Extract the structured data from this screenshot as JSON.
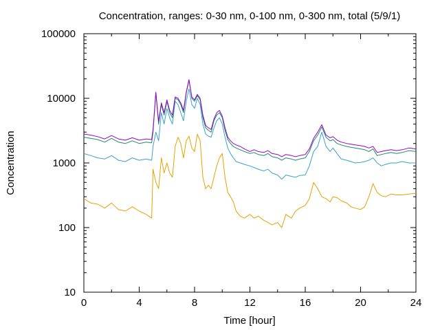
{
  "chart_data": {
    "type": "line",
    "title": "Concentration, ranges: 0-30 nm, 0-100 nm, 0-300 nm, total (5/9/1)",
    "xlabel": "Time [hour]",
    "ylabel": "Concentration",
    "xlim": [
      0,
      24
    ],
    "ylim": [
      10,
      100000
    ],
    "yscale": "log",
    "grid": false,
    "legend": "none",
    "x_ticks": [
      "0",
      "4",
      "8",
      "12",
      "16",
      "20",
      "24"
    ],
    "y_ticks": [
      "10",
      "100",
      "1000",
      "10000",
      "100000"
    ],
    "series": [
      {
        "color": "#e6a000",
        "x": [
          0,
          0.5,
          1,
          1.5,
          2,
          2.5,
          3,
          3.5,
          4,
          4.5,
          4.9,
          5.0,
          5.2,
          5.4,
          5.6,
          5.8,
          6,
          6.2,
          6.4,
          6.6,
          6.8,
          7,
          7.2,
          7.4,
          7.6,
          7.8,
          8,
          8.2,
          8.4,
          8.6,
          8.8,
          9,
          9.2,
          9.4,
          9.6,
          9.8,
          10,
          10.2,
          10.4,
          10.6,
          10.8,
          11,
          11.3,
          11.6,
          12,
          12.3,
          12.6,
          13,
          13.3,
          13.6,
          14,
          14.3,
          14.6,
          15,
          15.3,
          15.6,
          16,
          16.3,
          16.6,
          16.9,
          17.2,
          17.5,
          17.8,
          18,
          18.3,
          18.6,
          19,
          19.3,
          19.6,
          20,
          20.3,
          20.6,
          20.9,
          21.2,
          21.5,
          21.8,
          22.2,
          22.6,
          23,
          23.5,
          24
        ],
        "values": [
          280,
          240,
          230,
          200,
          240,
          190,
          180,
          210,
          180,
          160,
          140,
          800,
          500,
          400,
          1200,
          700,
          1000,
          700,
          600,
          1800,
          2500,
          2000,
          1200,
          2200,
          2600,
          1700,
          1500,
          2800,
          2200,
          600,
          400,
          450,
          400,
          600,
          900,
          1200,
          1400,
          600,
          350,
          300,
          250,
          180,
          150,
          140,
          160,
          140,
          150,
          130,
          120,
          110,
          120,
          100,
          160,
          140,
          180,
          200,
          220,
          280,
          500,
          400,
          300,
          280,
          250,
          300,
          290,
          260,
          240,
          210,
          200,
          190,
          210,
          300,
          480,
          350,
          310,
          300,
          330,
          320,
          320,
          330,
          340
        ]
      },
      {
        "color": "#3a9fd0",
        "x": [
          0,
          0.5,
          1,
          1.5,
          2,
          2.5,
          3,
          3.5,
          4,
          4.5,
          4.9,
          5.0,
          5.2,
          5.4,
          5.6,
          5.8,
          6,
          6.2,
          6.4,
          6.6,
          6.8,
          7,
          7.2,
          7.4,
          7.6,
          7.8,
          8,
          8.2,
          8.4,
          8.6,
          8.8,
          9,
          9.2,
          9.4,
          9.6,
          9.8,
          10,
          10.2,
          10.4,
          10.6,
          10.8,
          11,
          11.3,
          11.6,
          12,
          12.3,
          12.6,
          13,
          13.3,
          13.6,
          14,
          14.3,
          14.6,
          15,
          15.3,
          15.6,
          16,
          16.3,
          16.6,
          16.9,
          17.2,
          17.5,
          17.8,
          18,
          18.3,
          18.6,
          19,
          19.3,
          19.6,
          20,
          20.3,
          20.6,
          20.9,
          21.2,
          21.5,
          21.8,
          22.2,
          22.6,
          23,
          23.5,
          24
        ],
        "values": [
          1400,
          1300,
          1200,
          1150,
          1300,
          1100,
          1050,
          1200,
          1100,
          1150,
          1100,
          1800,
          3000,
          2200,
          6000,
          4000,
          7000,
          5000,
          4000,
          9000,
          8000,
          6000,
          4500,
          9000,
          14000,
          8000,
          7000,
          10000,
          8000,
          4000,
          2800,
          2600,
          2500,
          3500,
          4500,
          5000,
          4000,
          2500,
          1700,
          1400,
          1200,
          1050,
          1000,
          950,
          900,
          850,
          800,
          750,
          800,
          700,
          650,
          560,
          650,
          620,
          600,
          640,
          650,
          900,
          1500,
          1800,
          3000,
          1800,
          1500,
          1700,
          1400,
          1150,
          1100,
          1050,
          1000,
          1020,
          1050,
          1100,
          1200,
          1000,
          900,
          950,
          1000,
          1000,
          1050,
          1000,
          1000
        ]
      },
      {
        "color": "#1a8a6a",
        "x": [
          0,
          0.5,
          1,
          1.5,
          2,
          2.5,
          3,
          3.5,
          4,
          4.5,
          4.9,
          5.0,
          5.2,
          5.4,
          5.6,
          5.8,
          6,
          6.2,
          6.4,
          6.6,
          6.8,
          7,
          7.2,
          7.4,
          7.6,
          7.8,
          8,
          8.2,
          8.4,
          8.6,
          8.8,
          9,
          9.2,
          9.4,
          9.6,
          9.8,
          10,
          10.2,
          10.4,
          10.6,
          10.8,
          11,
          11.3,
          11.6,
          12,
          12.3,
          12.6,
          13,
          13.3,
          13.6,
          14,
          14.3,
          14.6,
          15,
          15.3,
          15.6,
          16,
          16.3,
          16.6,
          16.9,
          17.2,
          17.5,
          17.8,
          18,
          18.3,
          18.6,
          19,
          19.3,
          19.6,
          20,
          20.3,
          20.6,
          20.9,
          21.2,
          21.5,
          21.8,
          22.2,
          22.6,
          23,
          23.5,
          24
        ],
        "values": [
          2500,
          2400,
          2300,
          2100,
          2400,
          2100,
          2000,
          2200,
          2000,
          2100,
          2050,
          3000,
          12000,
          4000,
          8000,
          5500,
          9000,
          6000,
          5000,
          10000,
          9500,
          8000,
          6000,
          12000,
          19000,
          10000,
          9000,
          11000,
          9500,
          5000,
          3500,
          3200,
          3000,
          4500,
          5500,
          6000,
          5000,
          3200,
          2300,
          2000,
          1800,
          1700,
          1600,
          1500,
          1400,
          1450,
          1350,
          1300,
          1400,
          1250,
          1200,
          1100,
          1200,
          1150,
          1100,
          1150,
          1200,
          1500,
          2200,
          2700,
          3600,
          2500,
          2200,
          2300,
          2000,
          1900,
          1800,
          1750,
          1700,
          1650,
          1600,
          1500,
          1650,
          1300,
          1350,
          1400,
          1450,
          1400,
          1450,
          1550,
          1500
        ]
      },
      {
        "color": "#9900cc",
        "x": [
          0,
          0.5,
          1,
          1.5,
          2,
          2.5,
          3,
          3.5,
          4,
          4.5,
          4.9,
          5.0,
          5.2,
          5.4,
          5.6,
          5.8,
          6,
          6.2,
          6.4,
          6.6,
          6.8,
          7,
          7.2,
          7.4,
          7.6,
          7.8,
          8,
          8.2,
          8.4,
          8.6,
          8.8,
          9,
          9.2,
          9.4,
          9.6,
          9.8,
          10,
          10.2,
          10.4,
          10.6,
          10.8,
          11,
          11.3,
          11.6,
          12,
          12.3,
          12.6,
          13,
          13.3,
          13.6,
          14,
          14.3,
          14.6,
          15,
          15.3,
          15.6,
          16,
          16.3,
          16.6,
          16.9,
          17.2,
          17.5,
          17.8,
          18,
          18.3,
          18.6,
          19,
          19.3,
          19.6,
          20,
          20.3,
          20.6,
          20.9,
          21.2,
          21.5,
          21.8,
          22.2,
          22.6,
          23,
          23.5,
          24
        ],
        "values": [
          2800,
          2700,
          2550,
          2350,
          2650,
          2350,
          2250,
          2450,
          2250,
          2350,
          2300,
          3300,
          12500,
          4400,
          8500,
          6000,
          9500,
          6500,
          5500,
          10500,
          10000,
          8500,
          6500,
          12500,
          19500,
          10500,
          9500,
          11500,
          10000,
          5500,
          3800,
          3500,
          3300,
          4800,
          6000,
          6500,
          5300,
          3500,
          2500,
          2200,
          2000,
          1900,
          1800,
          1650,
          1500,
          1600,
          1500,
          1450,
          1550,
          1400,
          1350,
          1250,
          1350,
          1300,
          1250,
          1300,
          1350,
          1650,
          2400,
          3000,
          3900,
          2700,
          2450,
          2550,
          2250,
          2100,
          2000,
          1950,
          1900,
          1850,
          1800,
          1700,
          1800,
          1450,
          1500,
          1550,
          1600,
          1550,
          1600,
          1700,
          1650
        ]
      }
    ]
  }
}
